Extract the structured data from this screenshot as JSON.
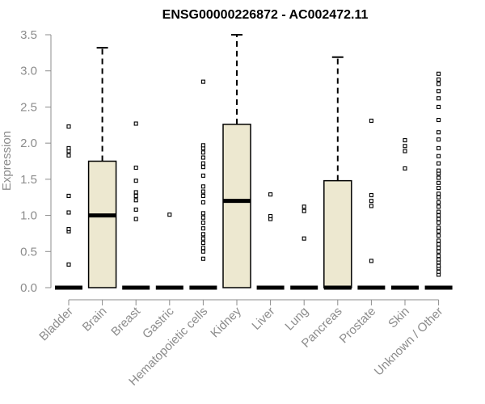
{
  "chart_data": {
    "type": "boxplot",
    "title": "ENSG00000226872 - AC002472.11",
    "ylabel": "Expression",
    "xlabel": "",
    "ylim": [
      0,
      3.5
    ],
    "yticks": [
      "0.0",
      "0.5",
      "1.0",
      "1.5",
      "2.0",
      "2.5",
      "3.0",
      "3.5"
    ],
    "grid": false,
    "box_fill": "#ede8d0",
    "box_stroke": "#000000",
    "axis_color": "#8c8c8c",
    "categories": [
      "Bladder",
      "Brain",
      "Breast",
      "Gastric",
      "Hematopoietic cells",
      "Kidney",
      "Liver",
      "Lung",
      "Pancreas",
      "Prostate",
      "Skin",
      "Unknown / Other"
    ],
    "boxes": [
      {
        "category": "Bladder",
        "min": 0,
        "q1": 0,
        "median": 0,
        "q3": 0,
        "max": 0,
        "outliers": [
          0.32,
          0.78,
          0.81,
          1.04,
          1.27,
          1.83,
          1.89,
          1.93,
          2.23
        ]
      },
      {
        "category": "Brain",
        "min": 0,
        "q1": 0,
        "median": 1.0,
        "q3": 1.75,
        "max": 3.32,
        "outliers": []
      },
      {
        "category": "Breast",
        "min": 0,
        "q1": 0,
        "median": 0,
        "q3": 0,
        "max": 0,
        "outliers": [
          0.95,
          1.08,
          1.21,
          1.27,
          1.32,
          1.48,
          1.66,
          2.27
        ]
      },
      {
        "category": "Gastric",
        "min": 0,
        "q1": 0,
        "median": 0,
        "q3": 0,
        "max": 0,
        "outliers": [
          1.01
        ]
      },
      {
        "category": "Hematopoietic cells",
        "min": 0,
        "q1": 0,
        "median": 0,
        "q3": 0,
        "max": 0,
        "outliers": [
          0.4,
          0.5,
          0.55,
          0.62,
          0.68,
          0.74,
          0.82,
          0.9,
          0.97,
          1.03,
          1.18,
          1.27,
          1.33,
          1.4,
          1.55,
          1.67,
          1.72,
          1.8,
          1.87,
          1.93,
          1.97,
          2.85
        ]
      },
      {
        "category": "Kidney",
        "min": 0,
        "q1": 0,
        "median": 1.2,
        "q3": 2.26,
        "max": 3.5,
        "outliers": []
      },
      {
        "category": "Liver",
        "min": 0,
        "q1": 0,
        "median": 0,
        "q3": 0,
        "max": 0,
        "outliers": [
          0.95,
          0.99,
          1.29
        ]
      },
      {
        "category": "Lung",
        "min": 0,
        "q1": 0,
        "median": 0,
        "q3": 0,
        "max": 0,
        "outliers": [
          0.68,
          1.06,
          1.12
        ]
      },
      {
        "category": "Pancreas",
        "min": 0,
        "q1": 0,
        "median": 0,
        "q3": 1.48,
        "max": 3.19,
        "outliers": []
      },
      {
        "category": "Prostate",
        "min": 0,
        "q1": 0,
        "median": 0,
        "q3": 0,
        "max": 0,
        "outliers": [
          0.37,
          1.13,
          1.2,
          1.28,
          2.31
        ]
      },
      {
        "category": "Skin",
        "min": 0,
        "q1": 0,
        "median": 0,
        "q3": 0,
        "max": 0,
        "outliers": [
          1.65,
          1.89,
          1.96,
          2.04
        ]
      },
      {
        "category": "Unknown / Other",
        "min": 0,
        "q1": 0,
        "median": 0,
        "q3": 0,
        "max": 0,
        "outliers": [
          0.18,
          0.22,
          0.27,
          0.3,
          0.35,
          0.39,
          0.44,
          0.5,
          0.55,
          0.6,
          0.65,
          0.72,
          0.78,
          0.83,
          0.9,
          0.95,
          1.0,
          1.05,
          1.12,
          1.18,
          1.25,
          1.3,
          1.38,
          1.45,
          1.52,
          1.58,
          1.62,
          1.72,
          1.82,
          1.93,
          2.05,
          2.15,
          2.32,
          2.5,
          2.62,
          2.72,
          2.82,
          2.88,
          2.96
        ]
      }
    ]
  }
}
